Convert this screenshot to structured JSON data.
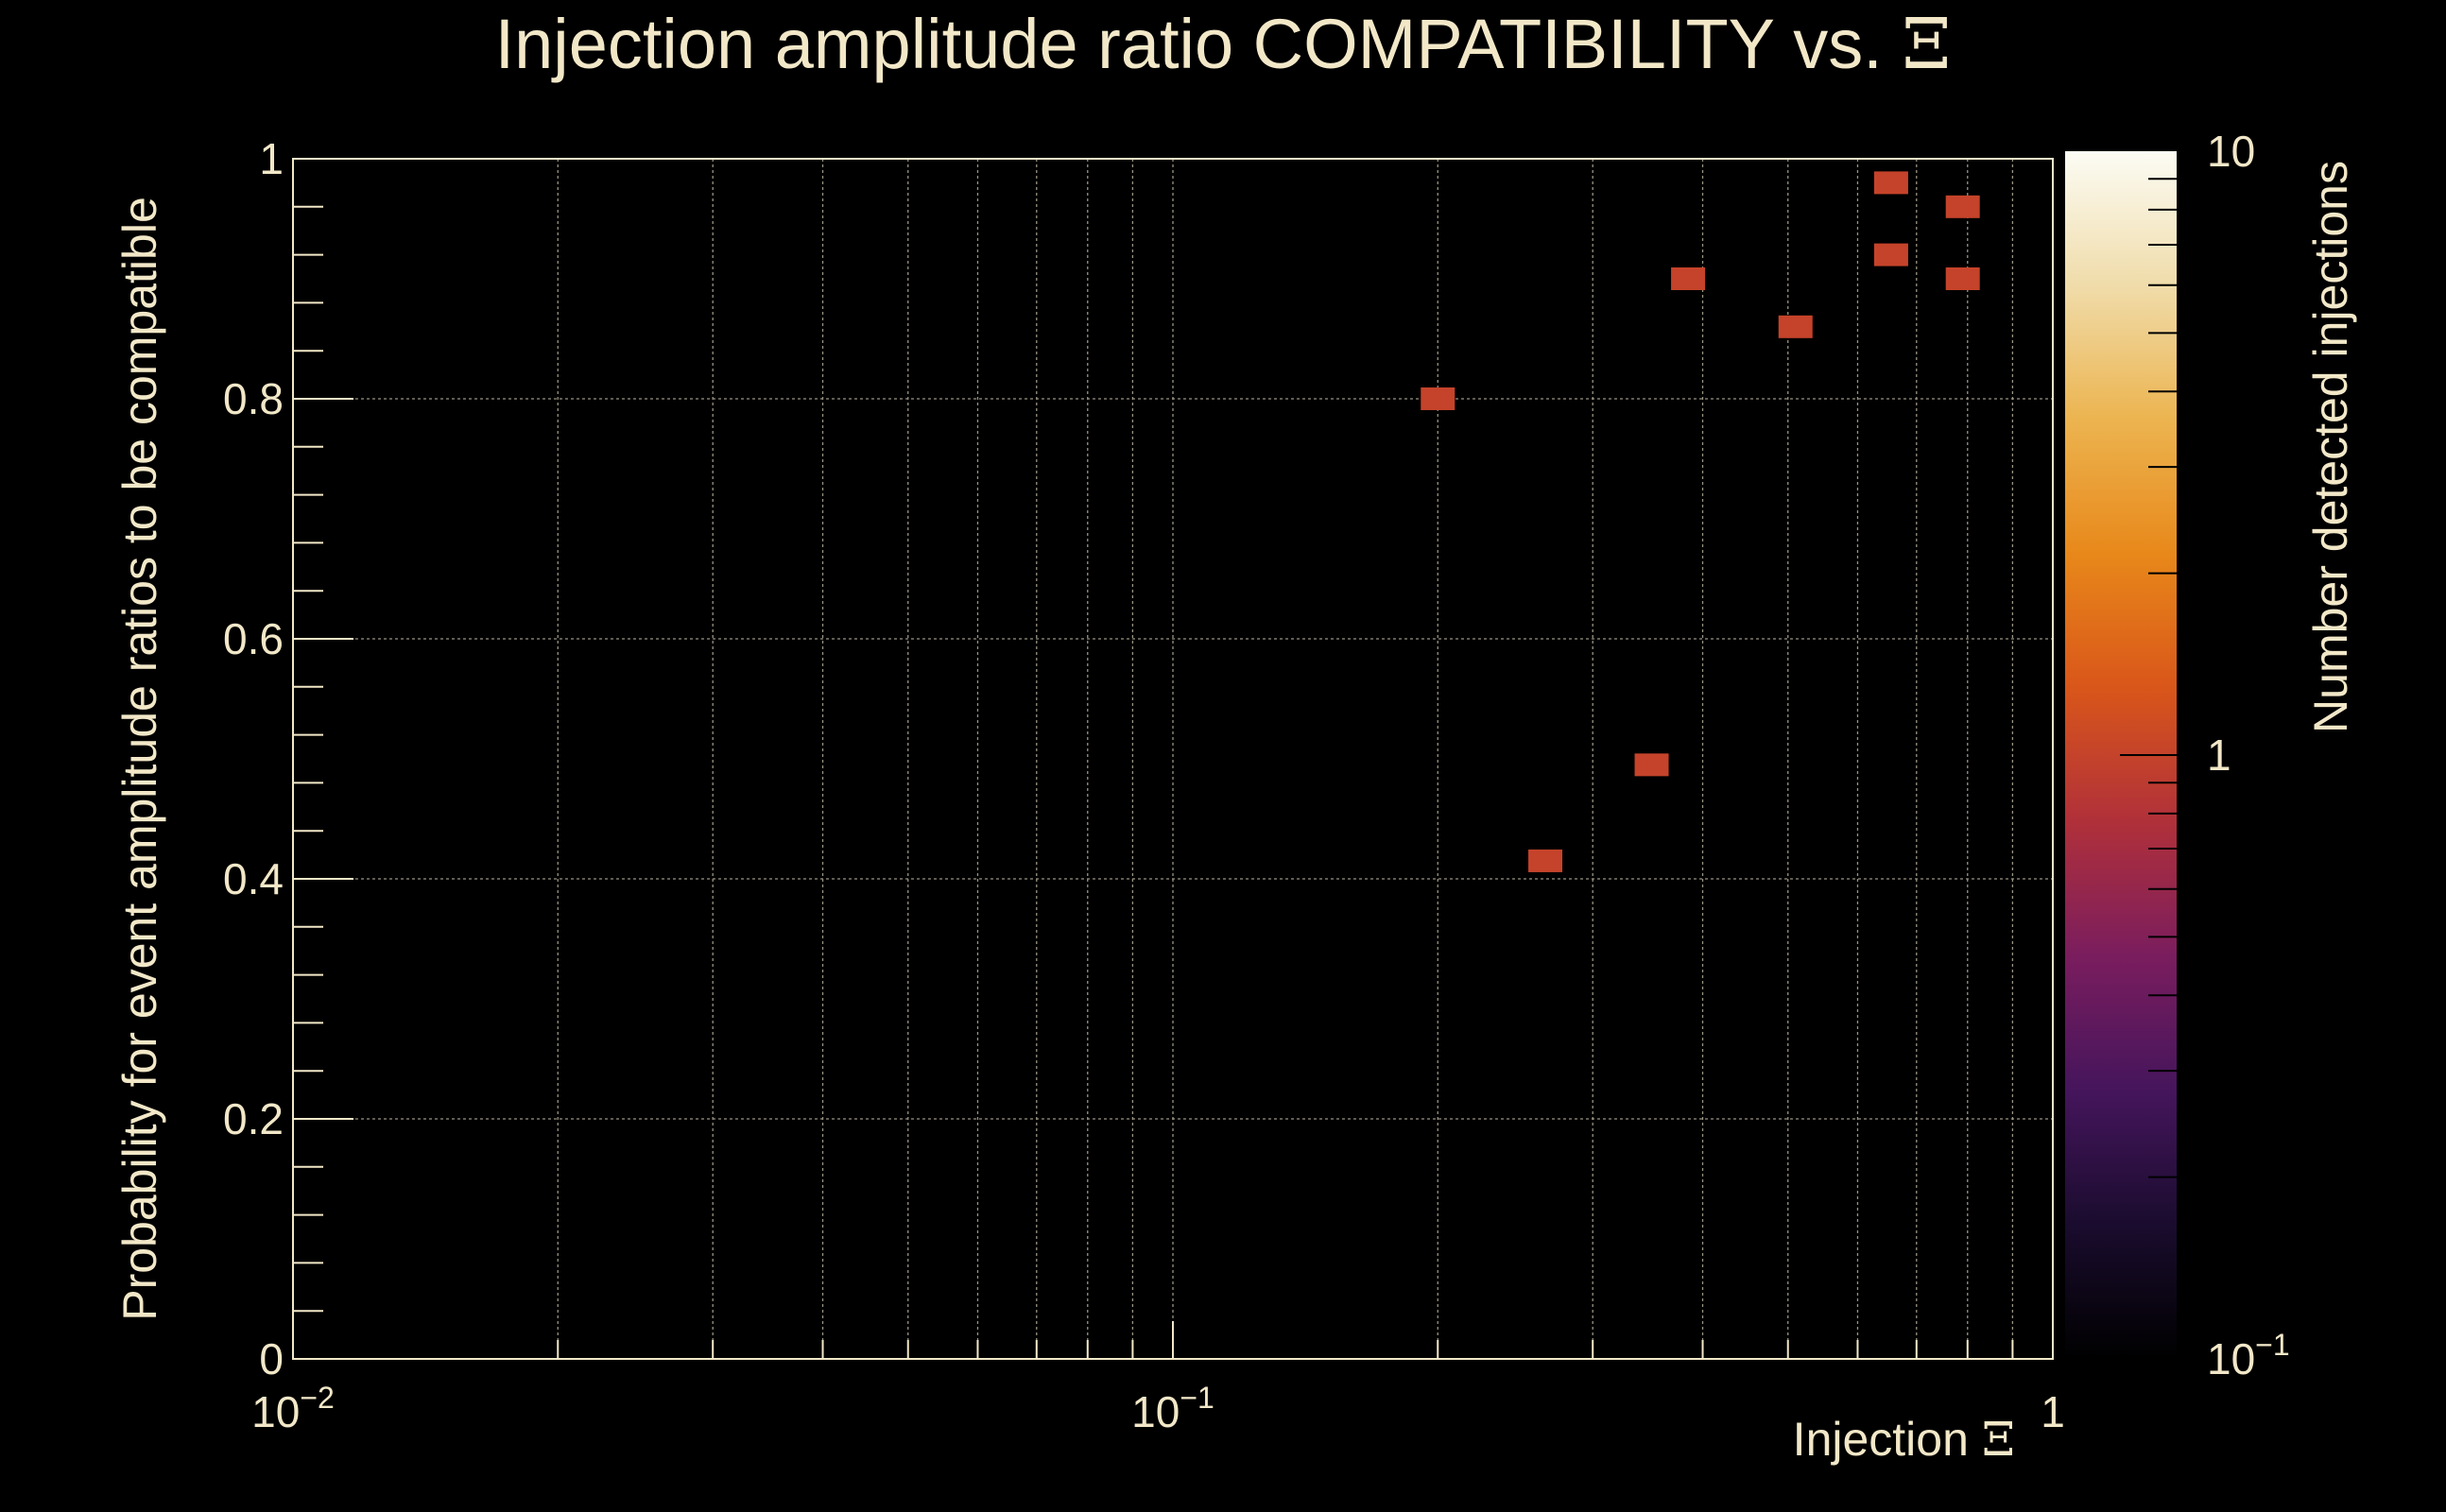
{
  "chart_data": {
    "type": "heatmap",
    "title": "Injection amplitude ratio COMPATIBILITY vs.",
    "title_symbol": "Ξ",
    "xlabel": "Injection",
    "xlabel_symbol": "Ξ",
    "ylabel": "Probability for event amplitude ratios to be compatible",
    "zlabel": "Number detected injections",
    "x_scale": "log",
    "xlim": [
      0.01,
      1
    ],
    "ylim": [
      0,
      1
    ],
    "x_ticks": [
      {
        "value": 0.01,
        "base": "10",
        "exp": "−2"
      },
      {
        "value": 0.1,
        "base": "10",
        "exp": "−1"
      },
      {
        "value": 1,
        "base": "1",
        "exp": ""
      }
    ],
    "y_ticks": [
      {
        "value": 0,
        "label": "0"
      },
      {
        "value": 0.2,
        "label": "0.2"
      },
      {
        "value": 0.4,
        "label": "0.4"
      },
      {
        "value": 0.6,
        "label": "0.6"
      },
      {
        "value": 0.8,
        "label": "0.8"
      },
      {
        "value": 1,
        "label": "1"
      }
    ],
    "z_scale": "log",
    "zlim": [
      0.1,
      10
    ],
    "z_ticks": [
      {
        "value": 0.1,
        "base": "10",
        "exp": "−1"
      },
      {
        "value": 1,
        "base": "1",
        "exp": ""
      },
      {
        "value": 10,
        "base": "10",
        "exp": ""
      }
    ],
    "grid": true,
    "colormap": [
      "#000000",
      "#1a0c2e",
      "#45155c",
      "#7a1d5e",
      "#b0303a",
      "#d9561a",
      "#e8881a",
      "#ecb450",
      "#f0dcaa",
      "#fcfcf4"
    ],
    "points": [
      {
        "x": 0.2,
        "y": 0.8,
        "count": 1
      },
      {
        "x": 0.265,
        "y": 0.415,
        "count": 1
      },
      {
        "x": 0.35,
        "y": 0.495,
        "count": 1
      },
      {
        "x": 0.385,
        "y": 0.9,
        "count": 1
      },
      {
        "x": 0.51,
        "y": 0.86,
        "count": 1
      },
      {
        "x": 0.655,
        "y": 0.98,
        "count": 1
      },
      {
        "x": 0.655,
        "y": 0.92,
        "count": 1
      },
      {
        "x": 0.79,
        "y": 0.96,
        "count": 1
      },
      {
        "x": 0.79,
        "y": 0.9,
        "count": 1
      }
    ]
  }
}
